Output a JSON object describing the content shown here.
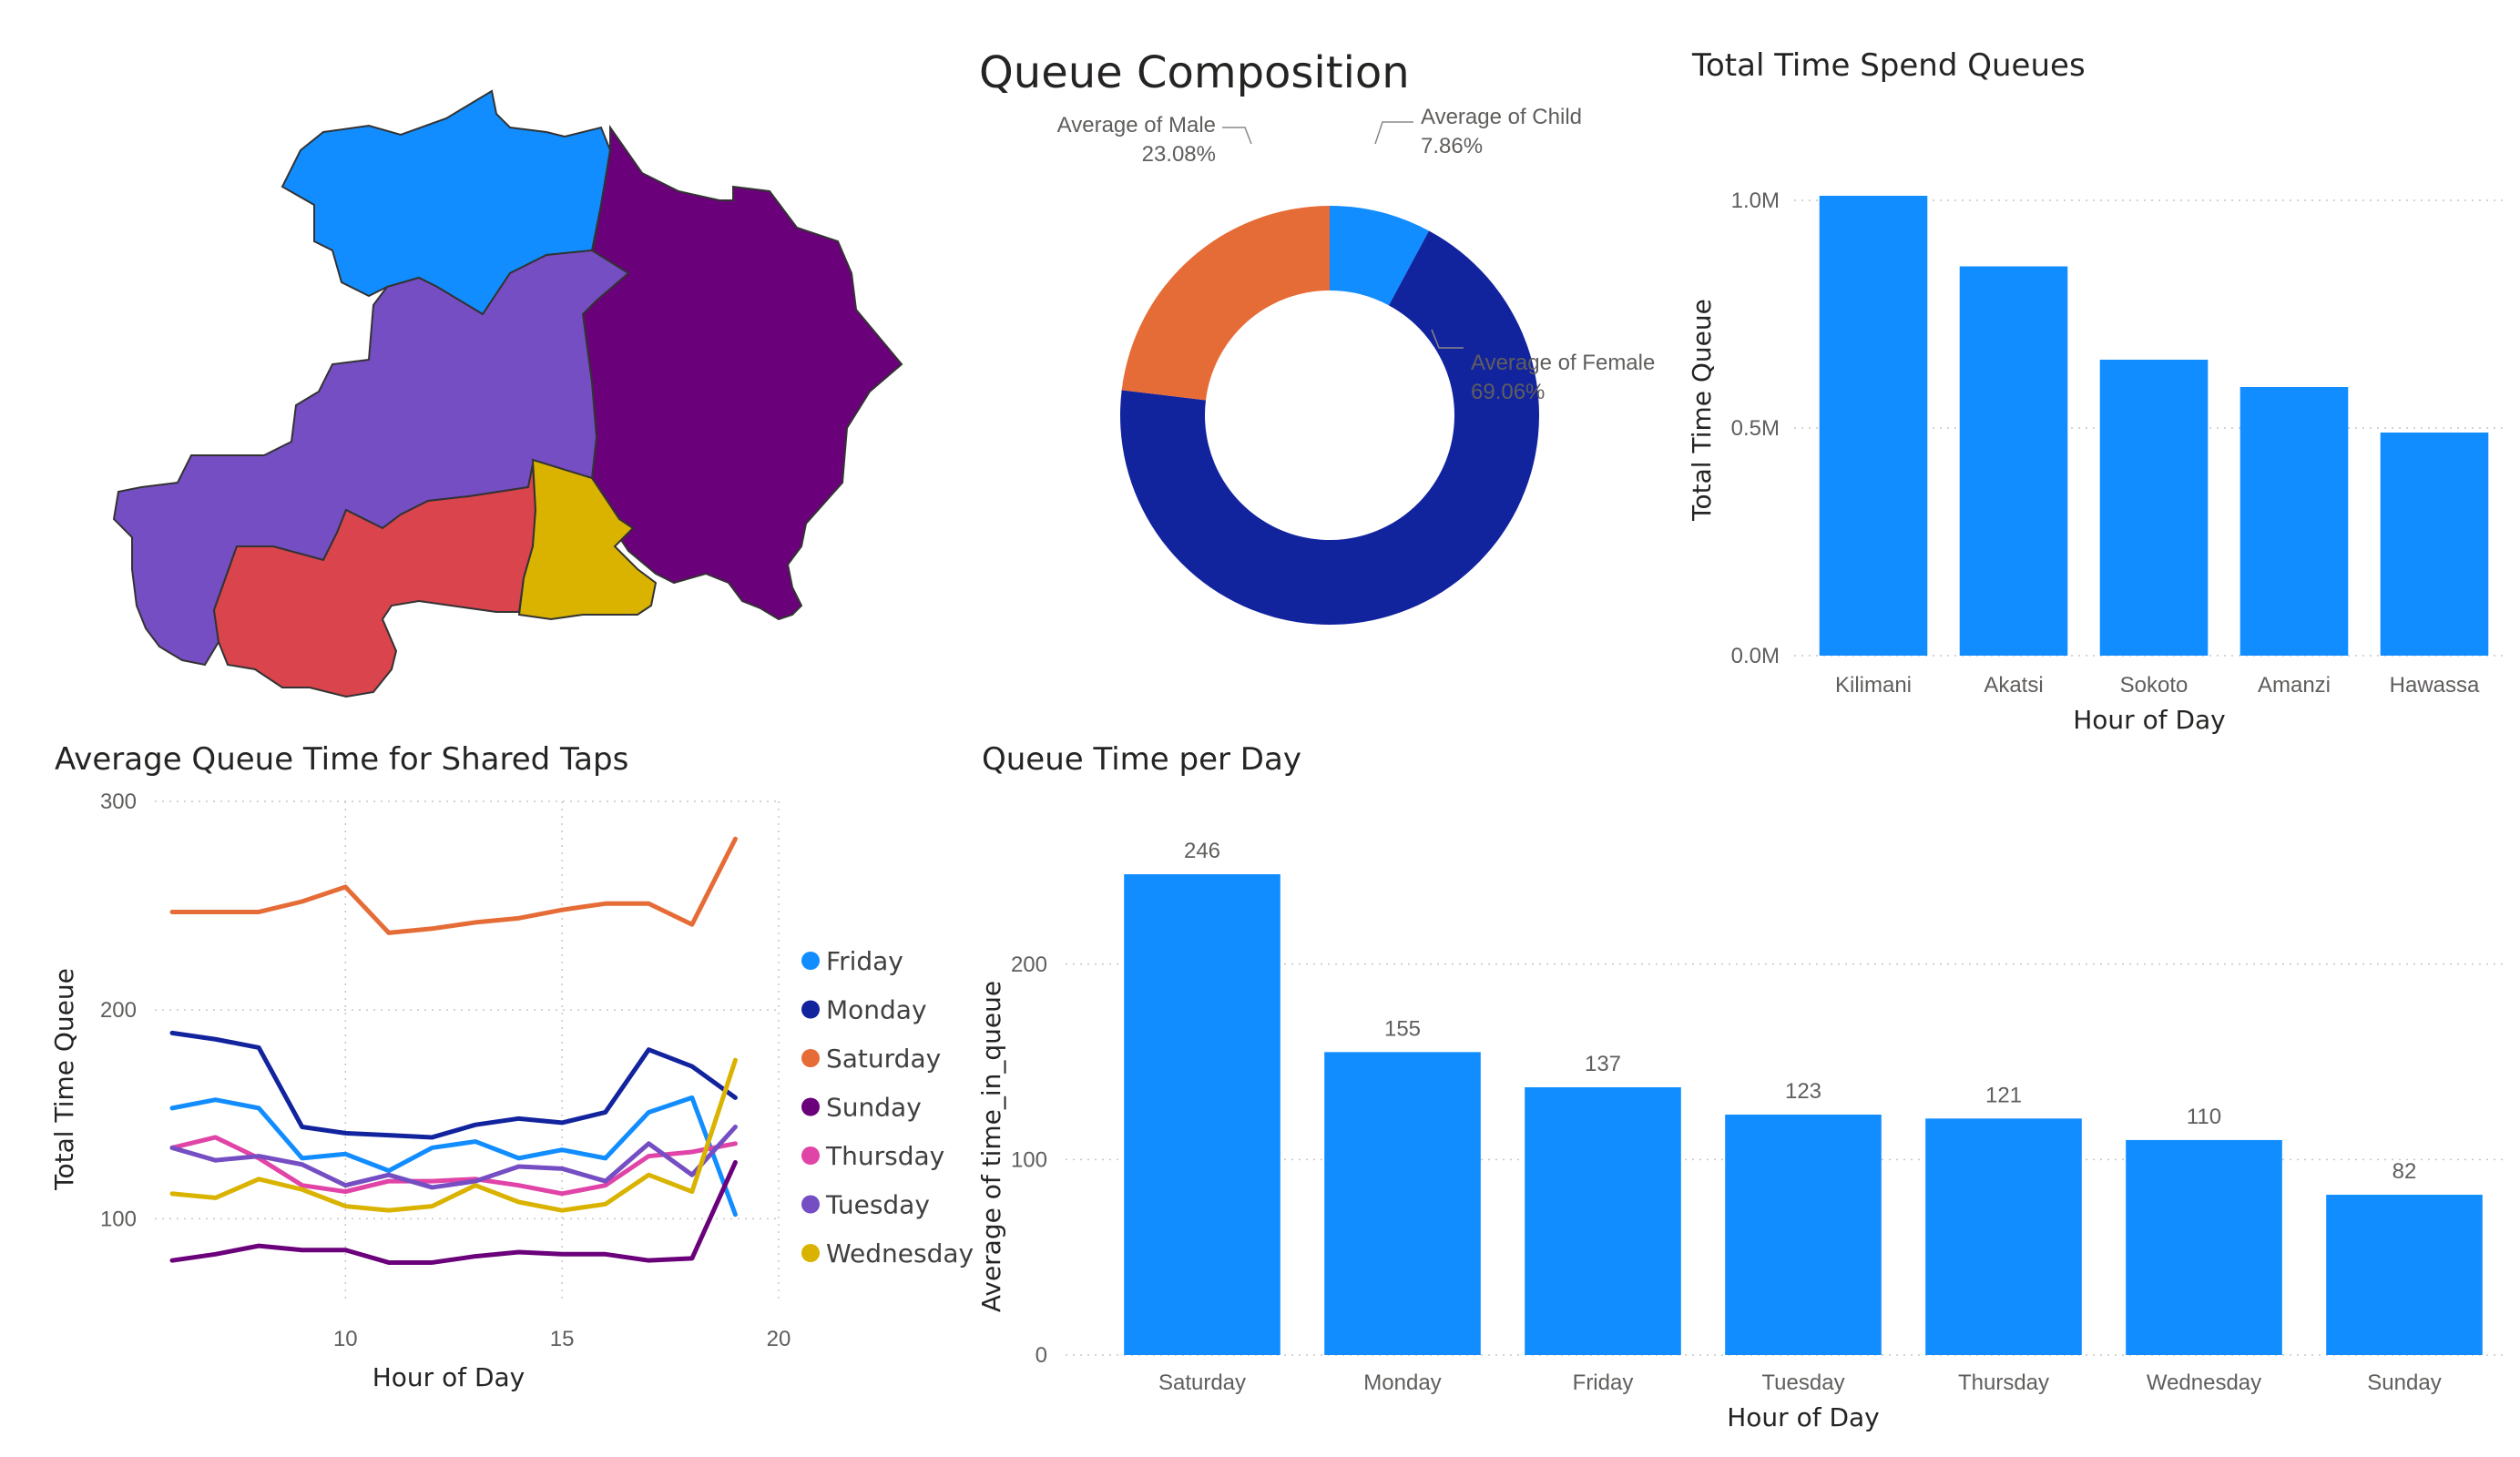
{
  "colors": {
    "bar": "#118dff",
    "map_north": "#118dff",
    "map_east": "#6b007b",
    "map_center": "#744ec2",
    "map_south": "#d9444d",
    "map_southeast": "#d9b300",
    "donut_child": "#118dff",
    "donut_female": "#12239e",
    "donut_male": "#e66c37"
  },
  "map": {
    "regions": [
      "north",
      "east",
      "center",
      "south",
      "southeast"
    ]
  },
  "composition": {
    "title": "Queue Composition",
    "chart_data": {
      "type": "pie",
      "donut": true,
      "slices": [
        {
          "label": "Average of Child",
          "value": 7.86,
          "value_label": "7.86%"
        },
        {
          "label": "Average of Female",
          "value": 69.06,
          "value_label": "69.06%"
        },
        {
          "label": "Average of Male",
          "value": 23.08,
          "value_label": "23.08%"
        }
      ]
    }
  },
  "total_time": {
    "title": "Total Time Spend Queues",
    "chart_data": {
      "type": "bar",
      "categories": [
        "Kilimani",
        "Akatsi",
        "Sokoto",
        "Amanzi",
        "Hawassa"
      ],
      "values": [
        1010000,
        855000,
        650000,
        590000,
        490000
      ],
      "xlabel": "Hour of Day",
      "ylabel": "Total Time Queue",
      "ylim": [
        0,
        1000000
      ],
      "yticks": [
        0,
        500000,
        1000000
      ],
      "ytick_labels": [
        "0.0M",
        "0.5M",
        "1.0M"
      ],
      "grid": true
    }
  },
  "shared_taps": {
    "title": "Average Queue Time for Shared Taps",
    "chart_data": {
      "type": "line",
      "x": [
        6,
        7,
        8,
        9,
        10,
        11,
        12,
        13,
        14,
        15,
        16,
        17,
        18,
        19
      ],
      "series": [
        {
          "name": "Friday",
          "color": "#118dff",
          "values": [
            153,
            157,
            153,
            129,
            131,
            123,
            134,
            137,
            129,
            133,
            129,
            151,
            158,
            102
          ]
        },
        {
          "name": "Monday",
          "color": "#12239e",
          "values": [
            189,
            186,
            182,
            144,
            141,
            140,
            139,
            145,
            148,
            146,
            151,
            181,
            173,
            158
          ]
        },
        {
          "name": "Saturday",
          "color": "#e66c37",
          "values": [
            247,
            247,
            247,
            252,
            259,
            237,
            239,
            242,
            244,
            248,
            251,
            251,
            241,
            282
          ]
        },
        {
          "name": "Sunday",
          "color": "#6b007b",
          "values": [
            80,
            83,
            87,
            85,
            85,
            79,
            79,
            82,
            84,
            83,
            83,
            80,
            81,
            127
          ]
        },
        {
          "name": "Thursday",
          "color": "#e044a7",
          "values": [
            134,
            139,
            129,
            116,
            113,
            118,
            118,
            119,
            116,
            112,
            116,
            130,
            132,
            136
          ]
        },
        {
          "name": "Tuesday",
          "color": "#744ec2",
          "values": [
            134,
            128,
            130,
            126,
            116,
            121,
            115,
            118,
            125,
            124,
            118,
            136,
            121,
            144
          ]
        },
        {
          "name": "Wednesday",
          "color": "#d9b300",
          "values": [
            112,
            110,
            119,
            114,
            106,
            104,
            106,
            116,
            108,
            104,
            107,
            121,
            113,
            176
          ]
        }
      ],
      "xlabel": "Hour of Day",
      "ylabel": "Total Time Queue",
      "xlim": [
        5.6,
        20
      ],
      "ylim": [
        60,
        300
      ],
      "xticks": [
        10,
        15,
        20
      ],
      "yticks": [
        100,
        200,
        300
      ],
      "legend": "right",
      "grid": true
    }
  },
  "per_day": {
    "title": "Queue Time per Day",
    "chart_data": {
      "type": "bar",
      "categories": [
        "Saturday",
        "Monday",
        "Friday",
        "Tuesday",
        "Thursday",
        "Wednesday",
        "Sunday"
      ],
      "values": [
        246,
        155,
        137,
        123,
        121,
        110,
        82
      ],
      "xlabel": "Hour of Day",
      "ylabel": "Average of time_in_queue",
      "ylim": [
        0,
        260
      ],
      "yticks": [
        0,
        100,
        200
      ],
      "data_labels": true,
      "grid": true
    }
  }
}
